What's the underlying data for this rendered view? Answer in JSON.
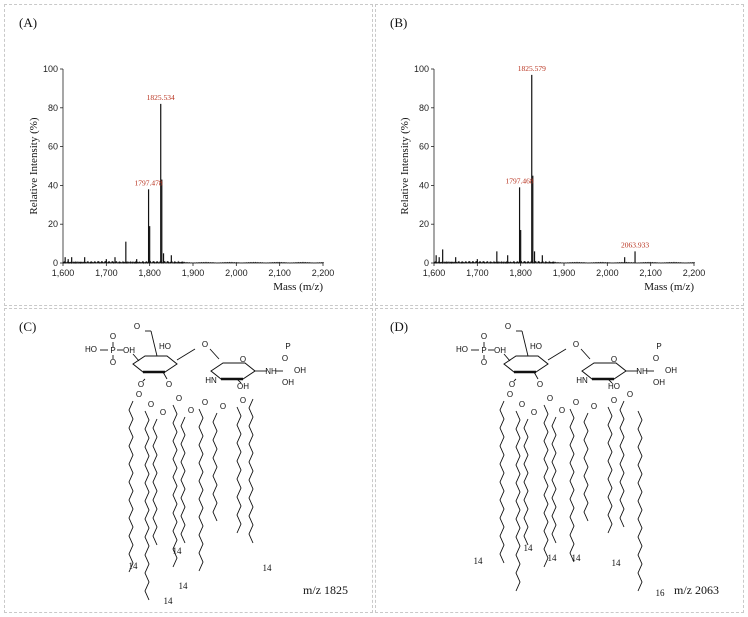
{
  "panels": {
    "a": {
      "label": "(A)"
    },
    "b": {
      "label": "(B)"
    },
    "c": {
      "label": "(C)",
      "mz_label": "m/z 1825",
      "chain_labels": [
        "14",
        "14",
        "14",
        "14",
        "14"
      ],
      "atoms": [
        "HO",
        "O",
        "P",
        "O",
        "OH",
        "O",
        "HO",
        "O",
        "O",
        "O",
        "HN",
        "OH",
        "O",
        "NH",
        "O",
        "P",
        "OH",
        "OH",
        "O",
        "O",
        "O",
        "O",
        "O",
        "O",
        "O",
        "O",
        "OH",
        "OH"
      ]
    },
    "d": {
      "label": "(D)",
      "mz_label": "m/z 2063",
      "chain_labels": [
        "14",
        "14",
        "14",
        "14",
        "14",
        "16"
      ],
      "atoms": [
        "HO",
        "O",
        "P",
        "O",
        "OH",
        "O",
        "HO",
        "O",
        "O",
        "O",
        "HN",
        "HO",
        "O",
        "NH",
        "O",
        "P",
        "OH",
        "OH",
        "O",
        "O",
        "O",
        "O",
        "O",
        "O",
        "O",
        "O",
        "O",
        "O",
        "O"
      ]
    }
  },
  "chart_data": [
    {
      "type": "line",
      "title": "",
      "xlabel": "Mass (m/z)",
      "ylabel": "Relative Intensity (%)",
      "xlim": [
        1600,
        2200
      ],
      "ylim": [
        0,
        100
      ],
      "xticks": [
        "1,600",
        "1,700",
        "1,800",
        "1,900",
        "2,000",
        "2,100",
        "2,200"
      ],
      "yticks": [
        "0",
        "20",
        "40",
        "60",
        "80",
        "100"
      ],
      "peaks": [
        {
          "x": 1605,
          "y": 3
        },
        {
          "x": 1612,
          "y": 2
        },
        {
          "x": 1620,
          "y": 3
        },
        {
          "x": 1650,
          "y": 3
        },
        {
          "x": 1700,
          "y": 2
        },
        {
          "x": 1720,
          "y": 3
        },
        {
          "x": 1745,
          "y": 11
        },
        {
          "x": 1770,
          "y": 2
        },
        {
          "x": 1797.478,
          "y": 38
        },
        {
          "x": 1800,
          "y": 19
        },
        {
          "x": 1825.534,
          "y": 82
        },
        {
          "x": 1828,
          "y": 43
        },
        {
          "x": 1832,
          "y": 5
        },
        {
          "x": 1850,
          "y": 4
        }
      ],
      "annotations": [
        {
          "x": 1797.478,
          "y": 38,
          "text": "1797.478"
        },
        {
          "x": 1825.534,
          "y": 82,
          "text": "1825.534"
        }
      ]
    },
    {
      "type": "line",
      "title": "",
      "xlabel": "Mass (m/z)",
      "ylabel": "Relative Intensity (%)",
      "xlim": [
        1600,
        2200
      ],
      "ylim": [
        0,
        100
      ],
      "xticks": [
        "1,600",
        "1,700",
        "1,800",
        "1,900",
        "2,000",
        "2,100",
        "2,200"
      ],
      "yticks": [
        "0",
        "20",
        "40",
        "60",
        "80",
        "100"
      ],
      "peaks": [
        {
          "x": 1605,
          "y": 4
        },
        {
          "x": 1612,
          "y": 3
        },
        {
          "x": 1620,
          "y": 7
        },
        {
          "x": 1650,
          "y": 3
        },
        {
          "x": 1700,
          "y": 2
        },
        {
          "x": 1745,
          "y": 6
        },
        {
          "x": 1770,
          "y": 4
        },
        {
          "x": 1797.468,
          "y": 39
        },
        {
          "x": 1800,
          "y": 17
        },
        {
          "x": 1825.579,
          "y": 97
        },
        {
          "x": 1828,
          "y": 45
        },
        {
          "x": 1832,
          "y": 6
        },
        {
          "x": 1850,
          "y": 4
        },
        {
          "x": 2040,
          "y": 3
        },
        {
          "x": 2063.933,
          "y": 6
        }
      ],
      "annotations": [
        {
          "x": 1797.468,
          "y": 39,
          "text": "1797.468"
        },
        {
          "x": 1825.579,
          "y": 97,
          "text": "1825.579"
        },
        {
          "x": 2063.933,
          "y": 6,
          "text": "2063.933"
        }
      ]
    }
  ]
}
